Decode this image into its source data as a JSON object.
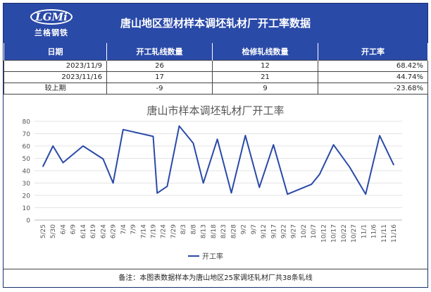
{
  "header": {
    "logo_mark": "LGMi",
    "logo_brand": "兰格钢铁",
    "title": "唐山地区型材样本调坯轧材厂开工率数据"
  },
  "table": {
    "columns": [
      "日期",
      "开工轧线数量",
      "检修轧线数量",
      "开工率"
    ],
    "rows": [
      [
        "2023/11/9",
        "26",
        "12",
        "68.42%"
      ],
      [
        "2023/11/16",
        "17",
        "21",
        "44.74%"
      ],
      [
        "较上期",
        "-9",
        "9",
        "-23.68%"
      ]
    ]
  },
  "chart_data": {
    "type": "line",
    "title": "唐山市样本调坯轧材厂开工率",
    "x": [
      "5/25",
      "5/30",
      "6/4",
      "6/9",
      "6/14",
      "6/19",
      "6/24",
      "6/29",
      "7/4",
      "7/9",
      "7/14",
      "7/19",
      "7/24",
      "7/29",
      "8/3",
      "8/8",
      "8/13",
      "8/18",
      "8/23",
      "8/28",
      "9/2",
      "9/7",
      "9/12",
      "9/17",
      "9/22",
      "9/27",
      "10/2",
      "10/7",
      "10/12",
      "10/17",
      "10/22",
      "10/27",
      "11/1",
      "11/6",
      "11/11",
      "11/16"
    ],
    "yticks": [
      "0",
      "10",
      "20",
      "30",
      "40",
      "50",
      "60",
      "70",
      "80"
    ],
    "ylim": [
      0,
      80
    ],
    "grid": true,
    "legend": "bottom",
    "series": [
      {
        "name": "开工率",
        "color": "#2a4aa8",
        "points": [
          [
            "5/25",
            43.4
          ],
          [
            "5/30",
            60.0
          ],
          [
            "6/4",
            46.5
          ],
          [
            "6/14",
            60.0
          ],
          [
            "6/24",
            49.5
          ],
          [
            "6/29",
            30.0
          ],
          [
            "7/4",
            73.3
          ],
          [
            "7/19",
            67.8
          ],
          [
            "7/21",
            21.8
          ],
          [
            "7/26",
            27.3
          ],
          [
            "8/1",
            76.2
          ],
          [
            "8/8",
            62.3
          ],
          [
            "8/13",
            30.0
          ],
          [
            "8/20",
            65.5
          ],
          [
            "8/27",
            22.0
          ],
          [
            "9/3",
            68.5
          ],
          [
            "9/10",
            26.5
          ],
          [
            "9/17",
            61.0
          ],
          [
            "9/24",
            21.0
          ],
          [
            "10/6",
            29.0
          ],
          [
            "10/10",
            37.0
          ],
          [
            "10/17",
            61.0
          ],
          [
            "10/25",
            43.0
          ],
          [
            "11/2",
            21.0
          ],
          [
            "11/9",
            68.42
          ],
          [
            "11/16",
            44.74
          ]
        ]
      }
    ]
  },
  "note": "备注：本图表数据样本为唐山地区25家调坯轧材厂共38条轧线"
}
